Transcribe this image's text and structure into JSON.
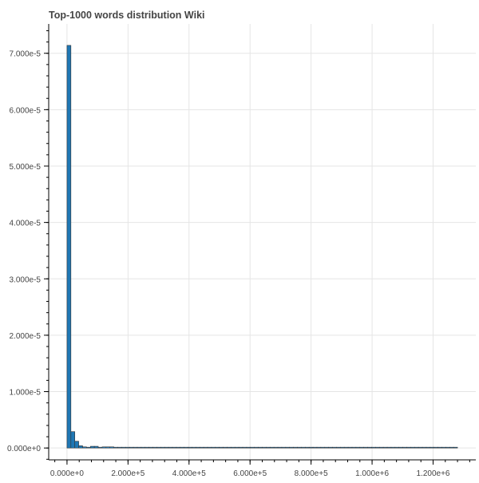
{
  "chart_data": {
    "type": "bar",
    "title": "Top-1000 words distribution Wiki",
    "xlabel": "",
    "ylabel": "",
    "xlim": [
      -60000,
      1340000
    ],
    "ylim": [
      -2.1e-06,
      7.52e-05
    ],
    "x_ticks": [
      0,
      200000,
      400000,
      600000,
      800000,
      1000000,
      1200000
    ],
    "x_tick_labels": [
      "0.000e+0",
      "2.000e+5",
      "4.000e+5",
      "6.000e+5",
      "8.000e+5",
      "1.000e+6",
      "1.200e+6"
    ],
    "y_ticks": [
      0,
      1e-05,
      2e-05,
      3e-05,
      4e-05,
      5e-05,
      6e-05,
      7e-05
    ],
    "y_tick_labels": [
      "0.000e+0",
      "1.000e-5",
      "2.000e-5",
      "3.000e-5",
      "4.000e-5",
      "5.000e-5",
      "6.000e-5",
      "7.000e-5"
    ],
    "bin_start": 0,
    "bin_width": 12800,
    "values": [
      7.14e-05,
      2.9e-06,
      1.2e-06,
      4e-07,
      2e-07,
      1e-07,
      3e-07,
      3e-07,
      1e-07,
      2e-07,
      2e-07,
      2e-07,
      1e-07,
      1e-07,
      1e-07,
      1e-07,
      1e-07,
      1e-07,
      5e-08,
      5e-08,
      5e-08,
      5e-08,
      5e-08,
      5e-08,
      5e-08,
      5e-08,
      5e-08,
      5e-08,
      5e-08,
      5e-08,
      5e-08,
      5e-08,
      5e-08,
      5e-08,
      5e-08,
      5e-08,
      5e-08,
      5e-08,
      5e-08,
      5e-08,
      5e-08,
      5e-08,
      5e-08,
      5e-08,
      5e-08,
      5e-08,
      5e-08,
      5e-08,
      5e-08,
      5e-08,
      5e-08,
      5e-08,
      5e-08,
      5e-08,
      5e-08,
      5e-08,
      5e-08,
      5e-08,
      5e-08,
      5e-08,
      5e-08,
      5e-08,
      5e-08,
      5e-08,
      5e-08,
      5e-08,
      5e-08,
      5e-08,
      5e-08,
      5e-08,
      5e-08,
      5e-08,
      5e-08,
      5e-08,
      5e-08,
      5e-08,
      5e-08,
      5e-08,
      5e-08,
      5e-08,
      5e-08,
      5e-08,
      5e-08,
      5e-08,
      5e-08,
      5e-08,
      5e-08,
      5e-08,
      5e-08,
      5e-08,
      5e-08,
      5e-08,
      5e-08,
      5e-08,
      5e-08,
      5e-08,
      5e-08,
      5e-08,
      5e-08,
      5e-08
    ],
    "grid": true,
    "legend": "none",
    "bar_color": "#1f77b4",
    "bar_edge_color": "#333333"
  }
}
